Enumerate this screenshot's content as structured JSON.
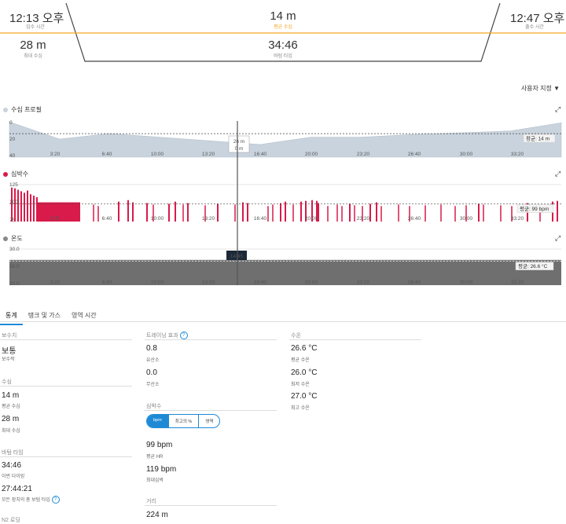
{
  "header": {
    "entry_time": "12:13 오후",
    "entry_label": "입수 시간",
    "avg_depth": "14 m",
    "avg_depth_label": "평균 수심",
    "exit_time": "12:47 오후",
    "exit_label": "출수 시간",
    "max_depth": "28 m",
    "max_depth_label": "최대 수심",
    "bottom_time": "34:46",
    "bottom_time_label": "바텀 타임"
  },
  "customize_label": "사용자 지정",
  "panels": {
    "depth": {
      "title": "수심 프로필",
      "avg": "평균: 14 m",
      "tooltip_top": "26 m",
      "tooltip_bottom": "0 m",
      "ticks": [
        "3:20",
        "6:40",
        "10:00",
        "13:20",
        "16:40",
        "20:00",
        "23:20",
        "26:40",
        "30:00",
        "33:20"
      ],
      "y_labels": [
        "0",
        "20",
        "40"
      ]
    },
    "hr": {
      "title": "심박수",
      "avg": "평균: 99 bpm",
      "ticks": [
        "3:20",
        "6:40",
        "10:00",
        "13:20",
        "16:40",
        "20:00",
        "23:20",
        "26:40",
        "30:00",
        "33:20"
      ],
      "y_labels": [
        "125",
        "100",
        "75"
      ]
    },
    "temp": {
      "title": "온도",
      "avg": "평균: 26.6 °C",
      "cursor_time": "14:45",
      "ticks": [
        "3:20",
        "6:40",
        "10:00",
        "13:20",
        "16:40",
        "20:00",
        "23:20",
        "26:40",
        "30:00",
        "33:20"
      ],
      "y_labels": [
        "30.0",
        "26.0",
        "20.0"
      ]
    }
  },
  "colors": {
    "depth": "#c9d3dd",
    "hr": "#d81b4a",
    "temp": "#c0c0c0",
    "accent": "#f5a623",
    "blue": "#1e8ad6"
  },
  "tabs": [
    "통계",
    "탱크 및 가스",
    "영역 시간"
  ],
  "stats": {
    "conservatism": {
      "title": "보수치",
      "value": "보통",
      "label": "보수적"
    },
    "depth": {
      "title": "수심",
      "avg_value": "14 m",
      "avg_label": "평균 수심",
      "max_value": "28 m",
      "max_label": "최대 수심"
    },
    "bottom": {
      "title": "바텀 타임",
      "dive_value": "34:46",
      "dive_label": "이번 다이빙",
      "total_value": "27:44:21",
      "total_label": "모든 장치의 총 보텀 타임"
    },
    "n2": {
      "title": "N2 로딩"
    },
    "training": {
      "title": "트레이닝 효과",
      "aerobic_value": "0.8",
      "aerobic_label": "유산소",
      "anaerobic_value": "0.0",
      "anaerobic_label": "무산소"
    },
    "heart": {
      "title": "심박수",
      "seg": [
        "bpm",
        "최고의 %",
        "영역"
      ],
      "avg_value": "99 bpm",
      "avg_label": "평균 HR",
      "max_value": "119 bpm",
      "max_label": "최대심박"
    },
    "distance": {
      "title": "거리",
      "value": "224 m"
    },
    "temp": {
      "title": "수온",
      "avg_value": "26.6 °C",
      "avg_label": "평균 수온",
      "min_value": "26.0 °C",
      "min_label": "최저 수온",
      "max_value": "27.0 °C",
      "max_label": "최고 수온"
    }
  },
  "chart_data": [
    {
      "type": "area",
      "title": "수심 프로필",
      "ylim": [
        0,
        40
      ],
      "y_inverted": true,
      "avg": 14,
      "x": [
        "0:00",
        "3:20",
        "6:40",
        "10:00",
        "13:20",
        "16:40",
        "20:00",
        "23:20",
        "26:40",
        "30:00",
        "33:20",
        "34:46"
      ],
      "values": [
        1,
        20,
        14,
        18,
        22,
        26,
        18,
        18,
        15,
        13,
        11,
        2
      ]
    },
    {
      "type": "bar",
      "title": "심박수",
      "ylim": [
        75,
        125
      ],
      "avg": 99
    },
    {
      "type": "area",
      "title": "온도",
      "ylim": [
        20,
        30
      ],
      "avg": 26.6,
      "min": 26.0,
      "max": 27.0
    }
  ]
}
